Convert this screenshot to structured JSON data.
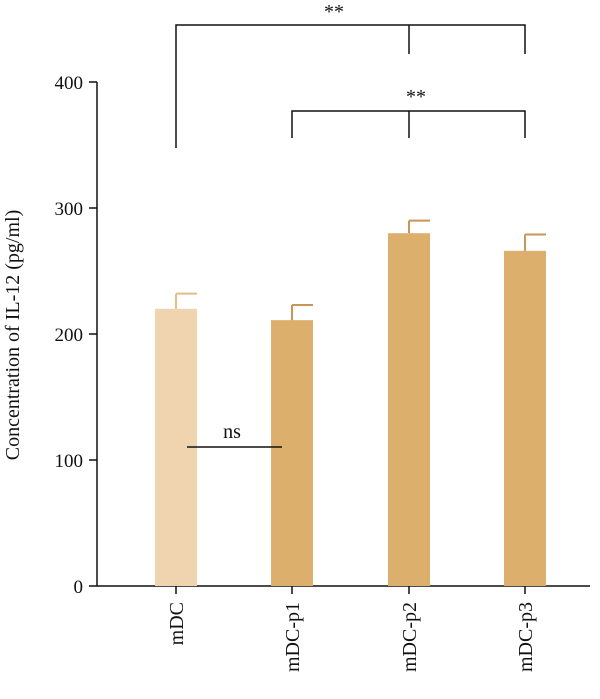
{
  "chart_data": {
    "type": "bar",
    "categories": [
      "mDC",
      "mDC-p1",
      "mDC-p2",
      "mDC-p3"
    ],
    "values": [
      220,
      211,
      280,
      266
    ],
    "errors": [
      12,
      12,
      10,
      13
    ],
    "colors": [
      "#f0d4b0",
      "#ddaf6d",
      "#ddaf6d",
      "#ddaf6d"
    ],
    "ylabel": "Concentration of IL-12 (pg/ml)",
    "xlabel": "",
    "ylim": [
      0,
      400
    ],
    "yticks": [
      0,
      100,
      200,
      300,
      400
    ],
    "grid": false,
    "annotations": [
      {
        "label": "**",
        "kind": "bracket",
        "from": "mDC",
        "to": [
          "mDC-p2",
          "mDC-p3"
        ]
      },
      {
        "label": "**",
        "kind": "bracket",
        "from": "mDC-p1",
        "to": [
          "mDC-p2",
          "mDC-p3"
        ]
      },
      {
        "label": "ns",
        "kind": "line",
        "from": "mDC",
        "to": "mDC-p1"
      }
    ]
  }
}
